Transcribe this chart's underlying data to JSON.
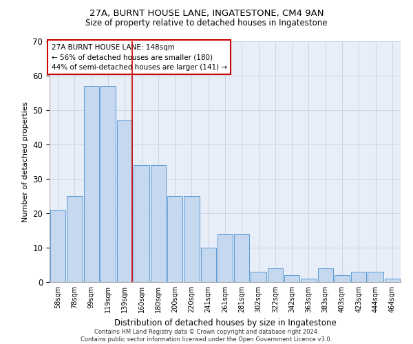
{
  "title1": "27A, BURNT HOUSE LANE, INGATESTONE, CM4 9AN",
  "title2": "Size of property relative to detached houses in Ingatestone",
  "xlabel": "Distribution of detached houses by size in Ingatestone",
  "ylabel": "Number of detached properties",
  "categories": [
    "58sqm",
    "78sqm",
    "99sqm",
    "119sqm",
    "139sqm",
    "160sqm",
    "180sqm",
    "200sqm",
    "220sqm",
    "241sqm",
    "261sqm",
    "281sqm",
    "302sqm",
    "322sqm",
    "342sqm",
    "363sqm",
    "383sqm",
    "403sqm",
    "423sqm",
    "444sqm",
    "464sqm"
  ],
  "values": [
    21,
    25,
    57,
    57,
    47,
    34,
    34,
    25,
    25,
    10,
    14,
    14,
    3,
    4,
    2,
    1,
    4,
    2,
    3,
    3,
    1
  ],
  "bar_color": "#c5d8ef",
  "bar_edge_color": "#5b9bd5",
  "highlight_index": 4,
  "highlight_color": "#cc0000",
  "ylim": [
    0,
    70
  ],
  "yticks": [
    0,
    10,
    20,
    30,
    40,
    50,
    60,
    70
  ],
  "annotation_text": "27A BURNT HOUSE LANE: 148sqm\n← 56% of detached houses are smaller (180)\n44% of semi-detached houses are larger (141) →",
  "footer": "Contains HM Land Registry data © Crown copyright and database right 2024.\nContains public sector information licensed under the Open Government Licence v3.0.",
  "grid_color": "#c8d4e8",
  "background_color": "#e8eef8"
}
